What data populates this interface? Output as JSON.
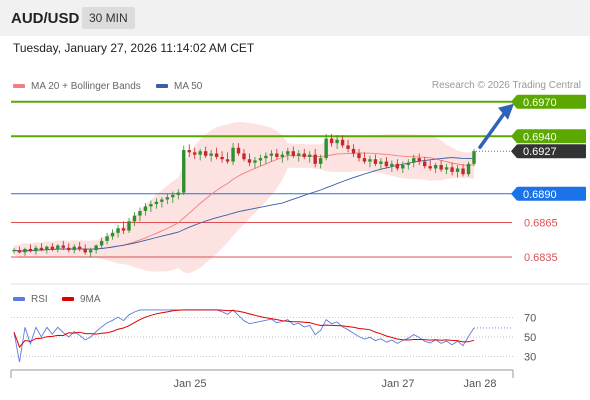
{
  "header": {
    "pair": "AUD/USD",
    "timeframe": "30 MIN"
  },
  "datetime": "Tuesday, January 27, 2026 11:14:02 AM CET",
  "legend": {
    "ma20": {
      "label": "MA 20 + Bollinger Bands",
      "color": "#f08080"
    },
    "ma50": {
      "label": "MA 50",
      "color": "#3a5fa8"
    }
  },
  "credit": "Research © 2026 Trading Central",
  "rsi_legend": {
    "rsi": {
      "label": "RSI",
      "color": "#5b7be0"
    },
    "ma": {
      "label": "9MA",
      "color": "#e00000"
    }
  },
  "levels": [
    {
      "value": "0.6970",
      "type": "resistance",
      "color": "#5aa800",
      "boxed": true
    },
    {
      "value": "0.6940",
      "type": "resistance",
      "color": "#5aa800",
      "boxed": true
    },
    {
      "value": "0.6927",
      "type": "last",
      "color": "#333333",
      "boxed": true
    },
    {
      "value": "0.6890",
      "type": "pivot",
      "color": "#1a73e8",
      "boxed": true
    },
    {
      "value": "0.6865",
      "type": "support",
      "color": "#e05050",
      "boxed": false
    },
    {
      "value": "0.6835",
      "type": "support",
      "color": "#e05050",
      "boxed": false
    }
  ],
  "rsi_levels": [
    "70",
    "50",
    "30"
  ],
  "x_labels": [
    "Jan 25",
    "Jan 27",
    "Jan 28"
  ],
  "chart_data": {
    "type": "candlestick",
    "price_range": [
      0.6815,
      0.6975
    ],
    "target": 0.697,
    "candles": [
      [
        0.684,
        0.6843,
        0.6838,
        0.6841
      ],
      [
        0.6841,
        0.6844,
        0.6838,
        0.6839
      ],
      [
        0.6839,
        0.6843,
        0.6836,
        0.6842
      ],
      [
        0.6842,
        0.6846,
        0.6839,
        0.684
      ],
      [
        0.684,
        0.6845,
        0.6837,
        0.6843
      ],
      [
        0.6843,
        0.6847,
        0.684,
        0.6841
      ],
      [
        0.6841,
        0.6845,
        0.6838,
        0.6844
      ],
      [
        0.6844,
        0.6847,
        0.684,
        0.6842
      ],
      [
        0.6842,
        0.6846,
        0.6839,
        0.6845
      ],
      [
        0.6845,
        0.6849,
        0.6841,
        0.6843
      ],
      [
        0.6843,
        0.6847,
        0.6839,
        0.6841
      ],
      [
        0.6841,
        0.6846,
        0.6838,
        0.6844
      ],
      [
        0.6844,
        0.6848,
        0.684,
        0.6842
      ],
      [
        0.6842,
        0.6846,
        0.6837,
        0.6839
      ],
      [
        0.6839,
        0.6843,
        0.6835,
        0.6841
      ],
      [
        0.6841,
        0.6846,
        0.6838,
        0.6845
      ],
      [
        0.6845,
        0.6852,
        0.6842,
        0.6849
      ],
      [
        0.6849,
        0.6856,
        0.6846,
        0.6853
      ],
      [
        0.6853,
        0.6859,
        0.685,
        0.6856
      ],
      [
        0.6856,
        0.6863,
        0.6852,
        0.686
      ],
      [
        0.686,
        0.6866,
        0.6855,
        0.6858
      ],
      [
        0.6858,
        0.6869,
        0.6856,
        0.6866
      ],
      [
        0.6866,
        0.6874,
        0.6862,
        0.6871
      ],
      [
        0.6871,
        0.6878,
        0.6866,
        0.6875
      ],
      [
        0.6875,
        0.6882,
        0.6871,
        0.6879
      ],
      [
        0.6879,
        0.6884,
        0.6874,
        0.6881
      ],
      [
        0.6881,
        0.6886,
        0.6877,
        0.6883
      ],
      [
        0.6883,
        0.6887,
        0.6878,
        0.6885
      ],
      [
        0.6885,
        0.689,
        0.6881,
        0.6887
      ],
      [
        0.6887,
        0.6892,
        0.6882,
        0.6889
      ],
      [
        0.6889,
        0.6894,
        0.6885,
        0.6891
      ],
      [
        0.6891,
        0.6932,
        0.6889,
        0.6928
      ],
      [
        0.6928,
        0.6933,
        0.6922,
        0.6926
      ],
      [
        0.6926,
        0.693,
        0.692,
        0.6924
      ],
      [
        0.6924,
        0.6929,
        0.6919,
        0.6927
      ],
      [
        0.6927,
        0.6931,
        0.6921,
        0.6923
      ],
      [
        0.6923,
        0.6928,
        0.6918,
        0.6925
      ],
      [
        0.6925,
        0.693,
        0.692,
        0.6922
      ],
      [
        0.6922,
        0.6927,
        0.6917,
        0.692
      ],
      [
        0.692,
        0.6926,
        0.6916,
        0.6918
      ],
      [
        0.6918,
        0.6934,
        0.6915,
        0.693
      ],
      [
        0.693,
        0.6934,
        0.6923,
        0.6925
      ],
      [
        0.6925,
        0.6929,
        0.6918,
        0.692
      ],
      [
        0.692,
        0.6925,
        0.6914,
        0.6917
      ],
      [
        0.6917,
        0.6922,
        0.6912,
        0.6919
      ],
      [
        0.6919,
        0.6924,
        0.6914,
        0.6921
      ],
      [
        0.6921,
        0.6926,
        0.6916,
        0.6923
      ],
      [
        0.6923,
        0.6928,
        0.6918,
        0.6925
      ],
      [
        0.6925,
        0.6929,
        0.692,
        0.6922
      ],
      [
        0.6922,
        0.6927,
        0.6917,
        0.6924
      ],
      [
        0.6924,
        0.693,
        0.6919,
        0.6927
      ],
      [
        0.6927,
        0.6931,
        0.6921,
        0.6923
      ],
      [
        0.6923,
        0.6928,
        0.6918,
        0.6925
      ],
      [
        0.6925,
        0.6929,
        0.692,
        0.6922
      ],
      [
        0.6922,
        0.6927,
        0.6917,
        0.6924
      ],
      [
        0.6924,
        0.6929,
        0.6913,
        0.6916
      ],
      [
        0.6916,
        0.6924,
        0.6912,
        0.6921
      ],
      [
        0.6921,
        0.6942,
        0.6919,
        0.6938
      ],
      [
        0.6938,
        0.6942,
        0.6931,
        0.6934
      ],
      [
        0.6934,
        0.6941,
        0.6929,
        0.6937
      ],
      [
        0.6937,
        0.6941,
        0.693,
        0.6932
      ],
      [
        0.6932,
        0.6937,
        0.6926,
        0.6929
      ],
      [
        0.6929,
        0.6933,
        0.6922,
        0.6925
      ],
      [
        0.6925,
        0.6929,
        0.6918,
        0.6921
      ],
      [
        0.6921,
        0.6926,
        0.6916,
        0.6918
      ],
      [
        0.6918,
        0.6923,
        0.6913,
        0.692
      ],
      [
        0.692,
        0.6924,
        0.6914,
        0.6916
      ],
      [
        0.6916,
        0.6921,
        0.6911,
        0.6918
      ],
      [
        0.6918,
        0.6922,
        0.6912,
        0.6914
      ],
      [
        0.6914,
        0.6919,
        0.6909,
        0.6916
      ],
      [
        0.6916,
        0.692,
        0.691,
        0.6912
      ],
      [
        0.6912,
        0.6918,
        0.6908,
        0.6915
      ],
      [
        0.6915,
        0.692,
        0.6911,
        0.6917
      ],
      [
        0.6917,
        0.6924,
        0.6913,
        0.6921
      ],
      [
        0.6921,
        0.6925,
        0.6915,
        0.6918
      ],
      [
        0.6918,
        0.6922,
        0.6912,
        0.6914
      ],
      [
        0.6914,
        0.6919,
        0.691,
        0.6912
      ],
      [
        0.6912,
        0.6917,
        0.6908,
        0.6915
      ],
      [
        0.6915,
        0.6919,
        0.6909,
        0.6911
      ],
      [
        0.6911,
        0.6916,
        0.6907,
        0.6913
      ],
      [
        0.6913,
        0.6917,
        0.6906,
        0.6909
      ],
      [
        0.6909,
        0.6915,
        0.6904,
        0.6912
      ],
      [
        0.6912,
        0.6916,
        0.6905,
        0.6907
      ],
      [
        0.6907,
        0.6918,
        0.6905,
        0.6916
      ],
      [
        0.6916,
        0.6929,
        0.6914,
        0.6927
      ]
    ]
  }
}
